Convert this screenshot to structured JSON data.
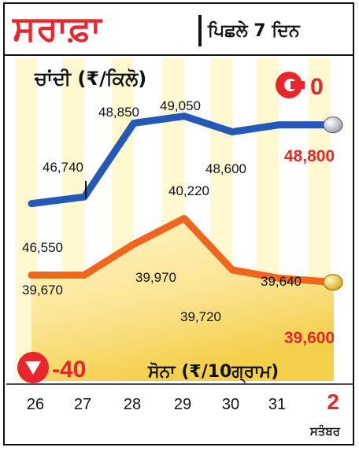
{
  "header": {
    "title": "ਸਰਾਫ਼ਾ",
    "subtitle": "ਪਿਛਲੇ 7 ਦਿਨ"
  },
  "colors": {
    "silver_line": "#2459b8",
    "gold_line": "#f2651f",
    "down_red": "#e8262b",
    "gold_fill_light": "#fff6c6",
    "gold_fill_dark": "#f4cf49",
    "stripe_light": "#fff5be"
  },
  "chart_data": {
    "type": "line",
    "categories": [
      "26",
      "27",
      "28",
      "29",
      "30",
      "31",
      "2"
    ],
    "month_label": "ਸਤੰਬਰ",
    "series": [
      {
        "name": "ਚਾਂਦੀ (₹/ਕਿਲੋ)",
        "values": [
          46550,
          46740,
          48850,
          49050,
          48600,
          48800,
          48800
        ],
        "labels": [
          "46,550",
          "46,740",
          "48,850",
          "49,050",
          "48,600",
          null,
          "48,800"
        ],
        "change": "0",
        "ylim": [
          45800,
          49400
        ]
      },
      {
        "name": "ਸੋਨਾ (₹/10ਗ੍ਰਾਮ)",
        "values": [
          39670,
          39670,
          39970,
          40220,
          39720,
          39640,
          39600
        ],
        "labels": [
          "39,670",
          null,
          "39,970",
          "40,220",
          "39,720",
          "39,640",
          "39,600"
        ],
        "change": "-40",
        "ylim": [
          39100,
          40400
        ]
      }
    ]
  }
}
